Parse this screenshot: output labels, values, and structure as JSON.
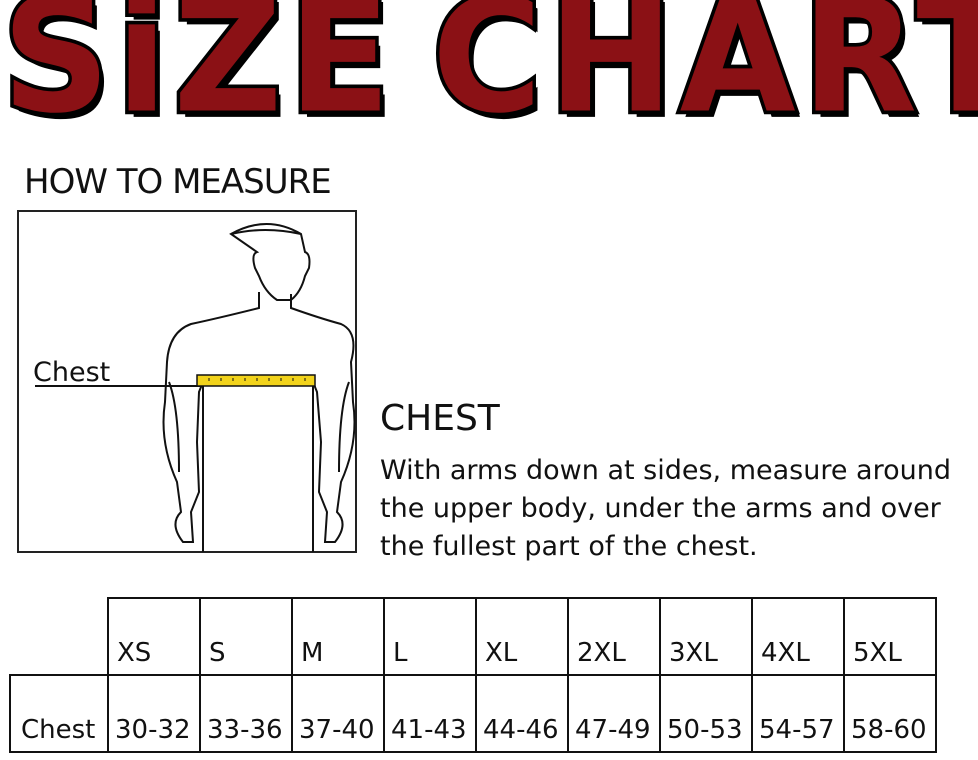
{
  "title": {
    "word1": "SiZE",
    "word2": "CHART",
    "fill_color": "#8b1115",
    "outline_color": "#000000"
  },
  "how_to_measure": {
    "heading": "HOW TO MEASURE",
    "figure_label": "Chest",
    "tape_color": "#f2d31b"
  },
  "instructions": {
    "heading": "CHEST",
    "text": "With arms down at sides, measure around the upper body, under the arms and over the fullest part of the chest."
  },
  "size_table": {
    "sizes": [
      "XS",
      "S",
      "M",
      "L",
      "XL",
      "2XL",
      "3XL",
      "4XL",
      "5XL"
    ],
    "rows": [
      {
        "label": "Chest",
        "values": [
          "30-32",
          "33-36",
          "37-40",
          "41-43",
          "44-46",
          "47-49",
          "50-53",
          "54-57",
          "58-60"
        ]
      }
    ]
  }
}
